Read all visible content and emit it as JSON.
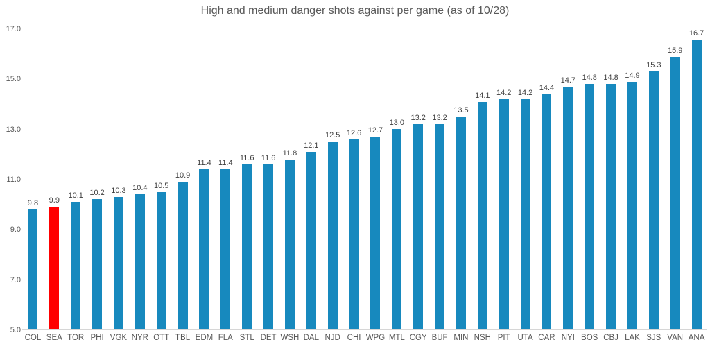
{
  "chart_data": {
    "type": "bar",
    "title": "High and medium danger shots against per game (as of 10/28)",
    "categories": [
      "COL",
      "SEA",
      "TOR",
      "PHI",
      "VGK",
      "NYR",
      "OTT",
      "TBL",
      "EDM",
      "FLA",
      "STL",
      "DET",
      "WSH",
      "DAL",
      "NJD",
      "CHI",
      "WPG",
      "MTL",
      "CGY",
      "BUF",
      "MIN",
      "NSH",
      "PIT",
      "UTA",
      "CAR",
      "NYI",
      "BOS",
      "CBJ",
      "LAK",
      "SJS",
      "VAN",
      "ANA"
    ],
    "values": [
      9.8,
      9.9,
      10.1,
      10.2,
      10.3,
      10.4,
      10.5,
      10.9,
      11.4,
      11.4,
      11.6,
      11.6,
      11.8,
      12.1,
      12.5,
      12.6,
      12.7,
      13.0,
      13.2,
      13.2,
      13.5,
      14.1,
      14.2,
      14.2,
      14.4,
      14.7,
      14.8,
      14.8,
      14.9,
      15.3,
      15.9,
      16.7
    ],
    "value_labels": [
      "9.8",
      "9.9",
      "10.1",
      "10.2",
      "10.3",
      "10.4",
      "10.5",
      "10.9",
      "11.4",
      "11.4",
      "11.6",
      "11.6",
      "11.8",
      "12.1",
      "12.5",
      "12.6",
      "12.7",
      "13.0",
      "13.2",
      "13.2",
      "13.5",
      "14.1",
      "14.2",
      "14.2",
      "14.4",
      "14.7",
      "14.8",
      "14.8",
      "14.9",
      "15.3",
      "15.9",
      "16.7"
    ],
    "xlabel": "",
    "ylabel": "",
    "ylim": [
      5.0,
      17.0
    ],
    "yticks": [
      5.0,
      7.0,
      9.0,
      11.0,
      13.0,
      15.0,
      17.0
    ],
    "ytick_labels": [
      "5.0",
      "7.0",
      "9.0",
      "11.0",
      "13.0",
      "15.0",
      "17.0"
    ],
    "grid": false,
    "legend": "none",
    "highlight_category": "SEA",
    "colors": {
      "bar": "#1789BE",
      "highlight_bar": "#FF0000",
      "title_text": "#595959",
      "axis_text": "#595959",
      "value_label_text": "#404040",
      "baseline": "#D6D6D6",
      "background": "#FFFFFF"
    }
  }
}
